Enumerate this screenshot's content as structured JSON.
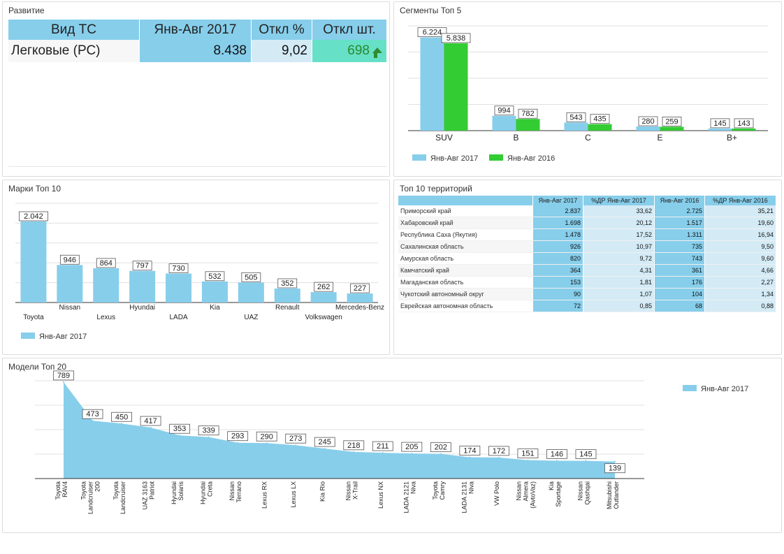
{
  "kpi": {
    "title": "Развитие",
    "headers": [
      "Вид ТС",
      "Янв-Авг 2017",
      "Откл %",
      "Откл шт."
    ],
    "row": {
      "name": "Легковые (РС)",
      "value": "8.438",
      "dev_pct": "9,02",
      "dev_units": "698",
      "trend_icon": "arrow-up-icon"
    }
  },
  "colors": {
    "series2017": "#87ceeb",
    "series2016": "#33cc33",
    "light": "#d4ebf6",
    "teal": "#66e0c7"
  },
  "territories": {
    "title": "Топ 10 территорий",
    "headers": [
      "",
      "Янв-Авг 2017",
      "%ДР Янв-Авг 2017",
      "Янв-Авг 2016",
      "%ДР Янв-Авг 2016"
    ],
    "rows": [
      [
        "Приморский край",
        "2.837",
        "33,62",
        "2.725",
        "35,21"
      ],
      [
        "Хабаровский край",
        "1.698",
        "20,12",
        "1.517",
        "19,60"
      ],
      [
        "Республика Саха (Якутия)",
        "1.478",
        "17,52",
        "1.311",
        "16,94"
      ],
      [
        "Сахалинская область",
        "926",
        "10,97",
        "735",
        "9,50"
      ],
      [
        "Амурская область",
        "820",
        "9,72",
        "743",
        "9,60"
      ],
      [
        "Камчатский край",
        "364",
        "4,31",
        "361",
        "4,66"
      ],
      [
        "Магаданская область",
        "153",
        "1,81",
        "176",
        "2,27"
      ],
      [
        "Чукотский автономный округ",
        "90",
        "1,07",
        "104",
        "1,34"
      ],
      [
        "Еврейская автономная область",
        "72",
        "0,85",
        "68",
        "0,88"
      ]
    ]
  },
  "chart_data": [
    {
      "type": "bar",
      "title": "Сегменты Топ 5",
      "categories": [
        "SUV",
        "B",
        "C",
        "E",
        "B+"
      ],
      "series": [
        {
          "name": "Янв-Авг 2017",
          "values": [
            6224,
            994,
            543,
            280,
            145
          ],
          "labels": [
            "6.224",
            "994",
            "543",
            "280",
            "145"
          ]
        },
        {
          "name": "Янв-Авг 2016",
          "values": [
            5838,
            782,
            435,
            259,
            143
          ],
          "labels": [
            "5.838",
            "782",
            "435",
            "259",
            "143"
          ]
        }
      ],
      "ylim": [
        0,
        7000
      ],
      "grid": true,
      "legend": "bottom-left"
    },
    {
      "type": "bar",
      "title": "Марки Топ 10",
      "categories": [
        "Toyota",
        "Nissan",
        "Lexus",
        "Hyundai",
        "LADA",
        "Kia",
        "UAZ",
        "Renault",
        "Volkswagen",
        "Mercedes-Benz"
      ],
      "series": [
        {
          "name": "Янв-Авг 2017",
          "values": [
            2042,
            946,
            864,
            797,
            730,
            532,
            505,
            352,
            262,
            227
          ],
          "labels": [
            "2.042",
            "946",
            "864",
            "797",
            "730",
            "532",
            "505",
            "352",
            "262",
            "227"
          ]
        }
      ],
      "ylim": [
        0,
        2500
      ],
      "grid": true,
      "legend": "bottom-left"
    },
    {
      "type": "area",
      "title": "Модели Топ 20",
      "categories": [
        "Toyota RAV4",
        "Toyota Landcruiser 200",
        "Toyota Landcruiser",
        "UAZ 3163 Patriot",
        "Hyundai Solaris",
        "Hyundai Creta",
        "Nissan Terrano",
        "Lexus RX",
        "Lexus LX",
        "Kia Rio",
        "Nissan X-Trail",
        "Lexus NX",
        "LADA 2121 Niva",
        "Toyota Camry",
        "LADA 2131 Niva",
        "VW Polo",
        "Nissan Almera (AvtoVaz)",
        "Kia Sportage",
        "Nissan Qashqai",
        "Mitsubishi Outlander"
      ],
      "tick_lines": [
        [
          "Toyota",
          "RAV4"
        ],
        [
          "Toyota",
          "Landcruiser",
          "200"
        ],
        [
          "Toyota",
          "Landcruiser"
        ],
        [
          "UAZ 3163",
          "Patriot"
        ],
        [
          "Hyundai",
          "Solaris"
        ],
        [
          "Hyundai",
          "Creta"
        ],
        [
          "Nissan",
          "Terrano"
        ],
        [
          "Lexus RX"
        ],
        [
          "Lexus LX"
        ],
        [
          "Kia Rio"
        ],
        [
          "Nissan",
          "X-Trail"
        ],
        [
          "Lexus NX"
        ],
        [
          "LADA 2121",
          "Niva"
        ],
        [
          "Toyota",
          "Camry"
        ],
        [
          "LADA 2131",
          "Niva"
        ],
        [
          "VW Polo"
        ],
        [
          "Nissan",
          "Almera",
          "(AvtoVaz)"
        ],
        [
          "Kia",
          "Sportage"
        ],
        [
          "Nissan",
          "Qashqai"
        ],
        [
          "Mitsubishi",
          "Outlander"
        ]
      ],
      "series": [
        {
          "name": "Янв-Авг 2017",
          "values": [
            789,
            473,
            450,
            417,
            353,
            339,
            293,
            290,
            273,
            245,
            218,
            211,
            205,
            202,
            174,
            172,
            151,
            146,
            145,
            139
          ]
        }
      ],
      "ylim": [
        0,
        800
      ],
      "grid": true,
      "legend": "top-right"
    }
  ]
}
